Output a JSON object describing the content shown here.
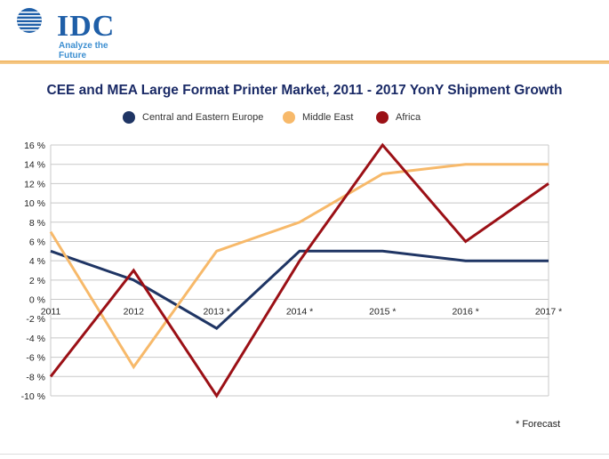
{
  "header": {
    "brand": "IDC",
    "tagline": "Analyze the Future",
    "logo_icon": "globe-icon",
    "accent_color": "#f0b35c"
  },
  "footnote": "* Forecast",
  "chart_data": {
    "type": "line",
    "title": "CEE and MEA Large Format Printer Market, 2011 - 2017 YonY Shipment Growth",
    "categories": [
      "2011",
      "2012",
      "2013 *",
      "2014 *",
      "2015 *",
      "2016 *",
      "2017 *"
    ],
    "series": [
      {
        "name": "Central and Eastern Europe",
        "color": "#1f3564",
        "values": [
          5,
          2,
          -3,
          5,
          5,
          4,
          4
        ]
      },
      {
        "name": "Middle East",
        "color": "#f7b96a",
        "values": [
          7,
          -7,
          5,
          8,
          13,
          14,
          14
        ]
      },
      {
        "name": "Africa",
        "color": "#9b1016",
        "values": [
          -8,
          3,
          -10,
          4,
          16,
          6,
          12
        ]
      }
    ],
    "ylim": [
      -10,
      16
    ],
    "yticks": [
      "16 %",
      "14 %",
      "12 %",
      "10 %",
      "8 %",
      "6 %",
      "4 %",
      "2 %",
      "0 %",
      "-2 %",
      "-4 %",
      "-6 %",
      "-8 %",
      "-10 %"
    ],
    "grid": true,
    "legend_position": "top"
  }
}
